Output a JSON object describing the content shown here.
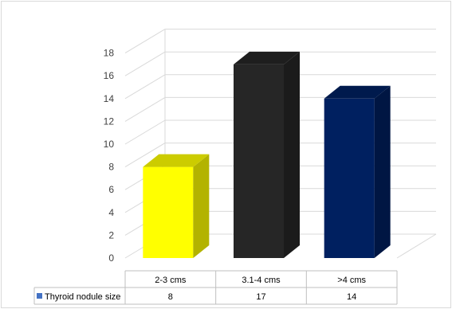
{
  "chart_data": {
    "type": "bar",
    "style": "3d-column-with-data-table",
    "categories": [
      "2-3 cms",
      "3.1-4 cms",
      ">4 cms"
    ],
    "series": [
      {
        "name": "Thyroid nodule size",
        "values": [
          8,
          17,
          14
        ],
        "legend_color": "#4472c4"
      }
    ],
    "bar_colors": [
      "#ffff00",
      "#262626",
      "#002060"
    ],
    "ylim": [
      0,
      18
    ],
    "yticks": [
      0,
      2,
      4,
      6,
      8,
      10,
      12,
      14,
      16,
      18
    ],
    "grid": true,
    "legend": "data-table-row"
  }
}
